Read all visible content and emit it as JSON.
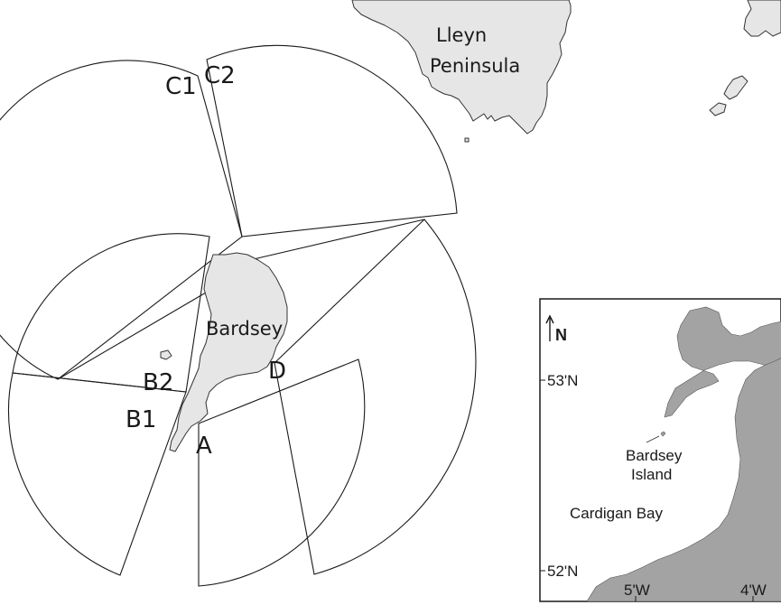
{
  "labels": {
    "lleyn_line1": "Lleyn",
    "lleyn_line2": "Peninsula",
    "bardsey": "Bardsey",
    "c1": "C1",
    "c2": "C2",
    "b1": "B1",
    "b2": "B2",
    "a": "A",
    "d": "D"
  },
  "inset": {
    "north": "N",
    "lat_53": "53'N",
    "lat_52": "52'N",
    "lon_5": "5'W",
    "lon_4": "4'W",
    "bardsey_line1": "Bardsey",
    "bardsey_line2": "Island",
    "cardigan_bay": "Cardigan Bay"
  },
  "colors": {
    "land": "#e6e6e6",
    "inset_land": "#a3a3a3",
    "lines": "#1a1a1a"
  },
  "icons": [
    "north-arrow-icon"
  ]
}
